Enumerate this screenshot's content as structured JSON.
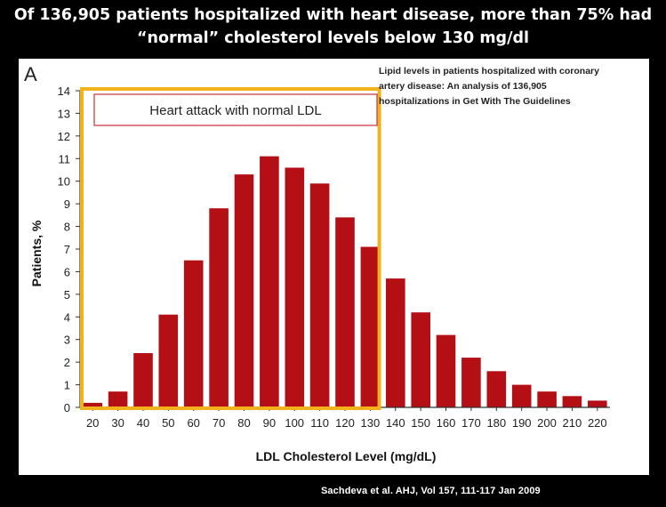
{
  "headline": {
    "line1": "Of 136,905 patients hospitalized with heart disease, more than 75% had",
    "line2": "“normal” cholesterol levels below 130 mg/dl"
  },
  "panel_letter": "A",
  "callout_label": "Heart attack with normal LDL",
  "citation": "Lipid levels in patients hospitalized with coronary artery disease: An analysis of 136,905 hospitalizations in Get With The Guidelines",
  "footer": "Sachdeva et al. AHJ, Vol 157, 111-117 Jan 2009",
  "colors": {
    "bar": "#b30f14",
    "highlight": "#f1b21b"
  },
  "chart_data": {
    "type": "bar",
    "categories": [
      "20",
      "30",
      "40",
      "50",
      "60",
      "70",
      "80",
      "90",
      "100",
      "110",
      "120",
      "130",
      "140",
      "150",
      "160",
      "170",
      "180",
      "190",
      "200",
      "210",
      "220"
    ],
    "values": [
      0.2,
      0.7,
      2.4,
      4.1,
      6.5,
      8.8,
      10.3,
      11.1,
      10.6,
      9.9,
      8.4,
      7.1,
      5.7,
      4.2,
      3.2,
      2.2,
      1.6,
      1.0,
      0.7,
      0.5,
      0.3
    ],
    "xlabel": "LDL Cholesterol Level (mg/dL)",
    "ylabel": "Patients, %",
    "ylim": [
      0,
      14
    ],
    "yticks": [
      "0",
      "1",
      "2",
      "3",
      "4",
      "5",
      "6",
      "7",
      "8",
      "9",
      "10",
      "11",
      "12",
      "13",
      "14"
    ],
    "grid": false,
    "highlight_range": [
      "20",
      "130"
    ]
  }
}
